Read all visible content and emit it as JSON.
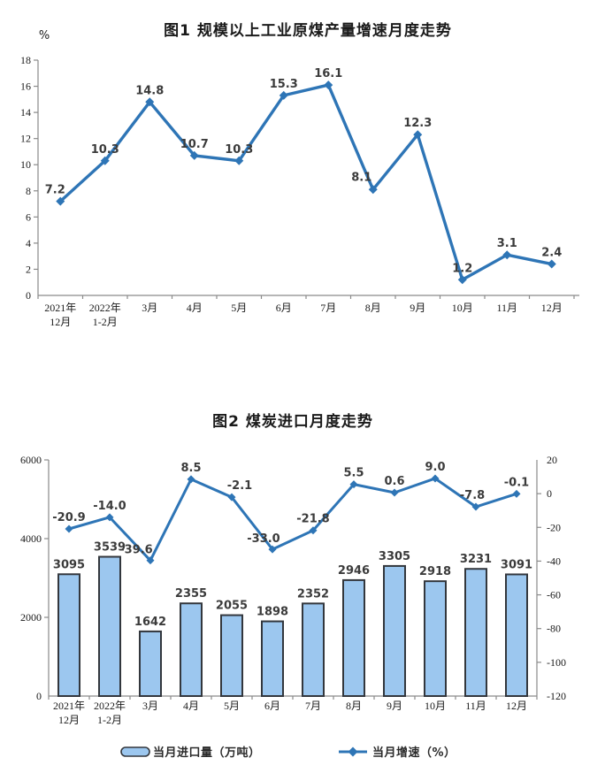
{
  "colors": {
    "line_blue": "#2E75B6",
    "bar_fill": "#9CC7EF",
    "bar_border": "#33373D",
    "axis_gray": "#8a8a8a",
    "label_dark": "#3b3b3b"
  },
  "chart_data": [
    {
      "type": "line",
      "title": "图1 规模以上工业原煤产量增速月度走势",
      "ylabel": "%",
      "categories": [
        [
          "2021年",
          "12月"
        ],
        [
          "2022年",
          "1-2月"
        ],
        [
          "3月"
        ],
        [
          "4月"
        ],
        [
          "5月"
        ],
        [
          "6月"
        ],
        [
          "7月"
        ],
        [
          "8月"
        ],
        [
          "9月"
        ],
        [
          "10月"
        ],
        [
          "11月"
        ],
        [
          "12月"
        ]
      ],
      "values": [
        7.2,
        10.3,
        14.8,
        10.7,
        10.3,
        15.3,
        16.1,
        8.1,
        12.3,
        1.2,
        3.1,
        2.4
      ],
      "ylim": [
        0,
        18
      ],
      "ytick_step": 2,
      "grid": false,
      "legend_position": "none",
      "line_color": "#2E75B6"
    },
    {
      "type": "bar+line",
      "title": "图2 煤炭进口月度走势",
      "categories": [
        [
          "2021年",
          "12月"
        ],
        [
          "2022年",
          "1-2月"
        ],
        [
          "3月"
        ],
        [
          "4月"
        ],
        [
          "5月"
        ],
        [
          "6月"
        ],
        [
          "7月"
        ],
        [
          "8月"
        ],
        [
          "9月"
        ],
        [
          "10月"
        ],
        [
          "11月"
        ],
        [
          "12月"
        ]
      ],
      "series": [
        {
          "name": "当月进口量（万吨）",
          "type": "bar",
          "axis": "left",
          "values": [
            3095,
            3539,
            1642,
            2355,
            2055,
            1898,
            2352,
            2946,
            3305,
            2918,
            3231,
            3091
          ],
          "fill": "#9CC7EF",
          "border": "#33373D"
        },
        {
          "name": "当月增速（%）",
          "type": "line",
          "axis": "right",
          "values": [
            -20.9,
            -14.0,
            -39.6,
            8.5,
            -2.1,
            -33.0,
            -21.8,
            5.5,
            0.6,
            9.0,
            -7.8,
            -0.1
          ],
          "color": "#2E75B6"
        }
      ],
      "left_ylim": [
        0,
        6000
      ],
      "left_tick_step": 2000,
      "right_ylim": [
        -120,
        20
      ],
      "right_tick_step": 20,
      "grid": false,
      "legend_position": "bottom"
    }
  ]
}
